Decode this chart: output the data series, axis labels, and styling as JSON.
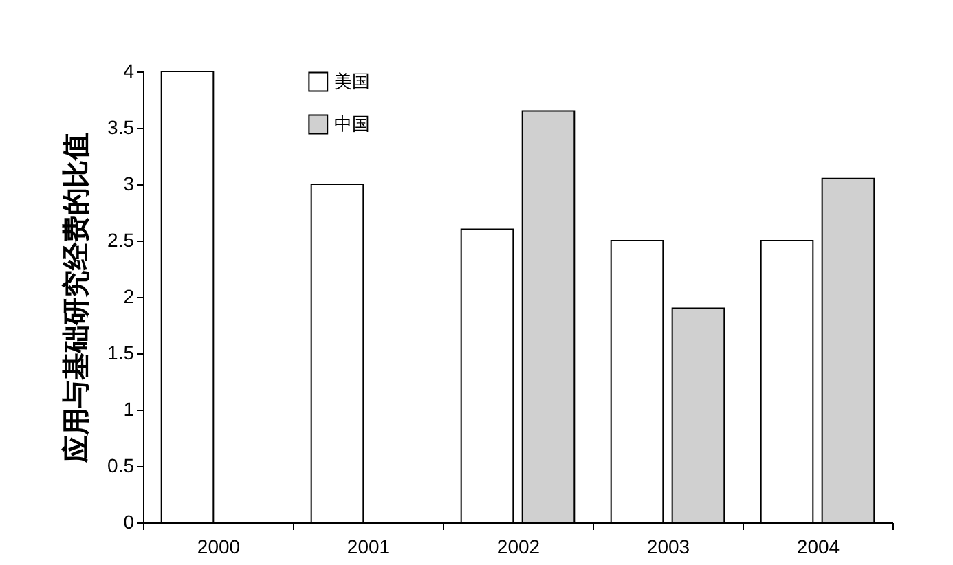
{
  "chart_data": {
    "type": "bar",
    "ylabel": "应用与基础研究经费的比值",
    "categories": [
      "2000",
      "2001",
      "2002",
      "2003",
      "2004"
    ],
    "series": [
      {
        "name": "美国",
        "color": "#ffffff",
        "values": [
          4,
          3,
          2.6,
          2.5,
          2.5
        ]
      },
      {
        "name": "中国",
        "color": "#d0d0d0",
        "values": [
          null,
          null,
          3.65,
          1.9,
          3.05
        ]
      }
    ],
    "ylim": [
      0,
      4
    ],
    "yticks": [
      0,
      0.5,
      1,
      1.5,
      2,
      2.5,
      3,
      3.5,
      4
    ],
    "grid": false,
    "legend": "top left"
  }
}
